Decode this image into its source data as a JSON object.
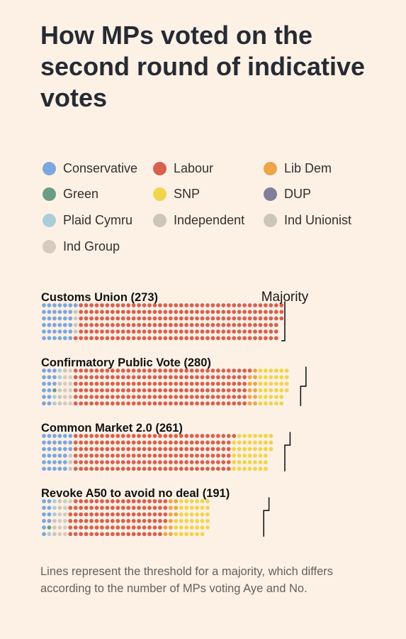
{
  "title": "How MPs voted on the second round of indicative votes",
  "footnote": "Lines represent the threshold for a majority, which differs according to the number of MPs voting Aye and No.",
  "colors": {
    "Conservative": "#7ba7de",
    "Labour": "#d9604f",
    "Lib Dem": "#eca648",
    "Green": "#6a9e84",
    "SNP": "#f2d44c",
    "DUP": "#807e99",
    "Plaid Cymru": "#a9ced8",
    "Independent": "#ccc6b8",
    "Ind Unionist": "#ccc6b8",
    "Ind Group": "#d6cbc1"
  },
  "legend": [
    "Conservative",
    "Labour",
    "Lib Dem",
    "Green",
    "SNP",
    "DUP",
    "Plaid Cymru",
    "Independent",
    "Ind Unionist",
    "Ind Group"
  ],
  "majority_label": "Majority",
  "chart_data": {
    "type": "dot-matrix",
    "rows_per_block": 6,
    "series_order": [
      "Conservative",
      "Green",
      "Plaid Cymru",
      "Independent",
      "Ind Group",
      "Labour",
      "Lib Dem",
      "SNP"
    ],
    "motions": [
      {
        "name": "Customs Union",
        "total": 273,
        "label": "Customs Union (273)",
        "counts": {
          "Conservative": 37,
          "Green": 0,
          "Plaid Cymru": 0,
          "Independent": 4,
          "Ind Group": 0,
          "Labour": 232,
          "Lib Dem": 0,
          "SNP": 0
        },
        "majority_lines": [
          {
            "columns": 46,
            "rows": 6
          }
        ]
      },
      {
        "name": "Confirmatory Public Vote",
        "total": 280,
        "label": "Confirmatory Public Vote (280)",
        "counts": {
          "Conservative": 15,
          "Green": 1,
          "Plaid Cymru": 4,
          "Independent": 5,
          "Ind Group": 11,
          "Labour": 199,
          "Lib Dem": 11,
          "SNP": 34
        },
        "majority_lines": [
          {
            "columns": 50,
            "rows": 3
          },
          {
            "columns": 49,
            "rows": 3
          }
        ]
      },
      {
        "name": "Common Market 2.0",
        "total": 261,
        "label": "Common Market 2.0 (261)",
        "counts": {
          "Conservative": 33,
          "Green": 0,
          "Plaid Cymru": 0,
          "Independent": 3,
          "Ind Group": 0,
          "Labour": 181,
          "Lib Dem": 0,
          "SNP": 44
        },
        "majority_lines": [
          {
            "columns": 47,
            "rows": 2
          },
          {
            "columns": 46,
            "rows": 4
          }
        ]
      },
      {
        "name": "Revoke A50 to avoid no deal",
        "total": 191,
        "label": "Revoke A50 to avoid no deal (191)",
        "counts": {
          "Conservative": 10,
          "Green": 1,
          "Plaid Cymru": 4,
          "Independent": 5,
          "Ind Group": 11,
          "Labour": 111,
          "Lib Dem": 11,
          "SNP": 38
        },
        "majority_lines": [
          {
            "columns": 43,
            "rows": 2
          },
          {
            "columns": 42,
            "rows": 4
          }
        ]
      }
    ]
  }
}
